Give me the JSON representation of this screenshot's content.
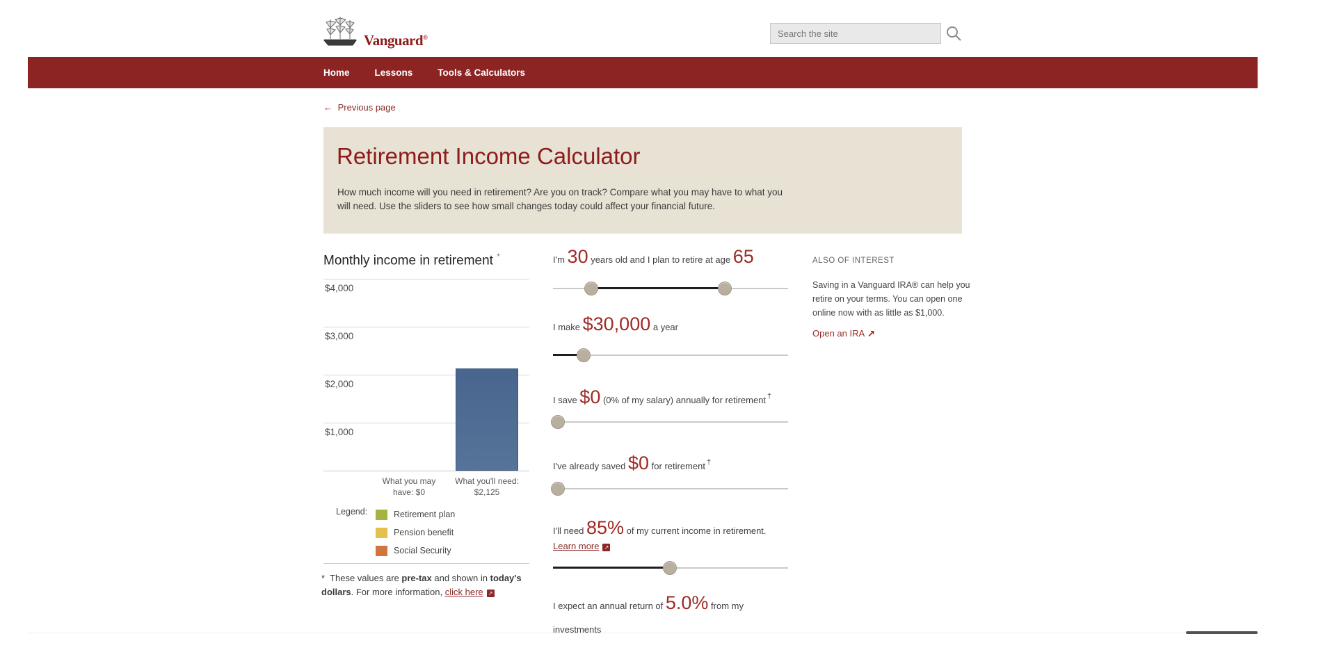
{
  "header": {
    "brand": "Vanguard",
    "brand_registered": "®",
    "search": {
      "placeholder": "Search the site"
    }
  },
  "nav": {
    "items": [
      {
        "label": "Home"
      },
      {
        "label": "Lessons"
      },
      {
        "label": "Tools & Calculators"
      }
    ]
  },
  "breadcrumb": {
    "back_arrow": "←",
    "label": "Previous page"
  },
  "banner": {
    "title": "Retirement Income Calculator",
    "description": "How much income will you need in retirement? Are you on track? Compare what you may have to what you will need. Use the sliders to see how small changes today could affect your financial future."
  },
  "chart_data": {
    "type": "bar",
    "title": "Monthly income in retirement",
    "title_note": "*",
    "categories": [
      "What you may have: $0",
      "What you'll need: $2,125"
    ],
    "values": [
      0,
      2125
    ],
    "ylim": [
      0,
      4000
    ],
    "ytick_interval": 1000,
    "ytick_labels": [
      "$4,000",
      "$3,000",
      "$2,000",
      "$1,000"
    ],
    "grid": true,
    "legend_title": "Legend:",
    "legend_position": "below",
    "legend": [
      {
        "label": "Retirement plan",
        "color": "#a6b33f"
      },
      {
        "label": "Pension benefit",
        "color": "#e2c14f"
      },
      {
        "label": "Social Security",
        "color": "#d0763c"
      }
    ],
    "bar_colors": {
      "top": "#48658e",
      "bottom": "#567499",
      "border": "#3a5680"
    }
  },
  "footnote": {
    "symbol": "*",
    "text_1": "These values are ",
    "bold_1": "pre-tax",
    "text_2": " and shown in ",
    "bold_2": "today's dollars",
    "text_3": ". For more information, ",
    "link_label": "click here",
    "external_icon": "↗"
  },
  "sliders": [
    {
      "prefix": "I'm ",
      "value": "30",
      "middle": " years old and I plan to retire at age ",
      "value2": "65",
      "handles": [
        16.3,
        73
      ],
      "fill": "between"
    },
    {
      "prefix": "I make ",
      "value": "$30,000",
      "suffix": " a year",
      "handles": [
        13
      ],
      "fill": "left"
    },
    {
      "prefix": "I save ",
      "value": "$0",
      "suffix": " (0% of my salary) annually for retirement",
      "note": "†",
      "handles": [
        2
      ],
      "fill": "left"
    },
    {
      "prefix": "I've already saved ",
      "value": "$0",
      "suffix": " for retirement",
      "note": "†",
      "handles": [
        2
      ],
      "fill": "left"
    },
    {
      "prefix": "I'll need ",
      "value": "85%",
      "suffix": " of my current income in retirement.",
      "link_label": "Learn more",
      "external_icon": "↗",
      "handles": [
        49.7
      ],
      "fill": "left"
    },
    {
      "prefix": "I expect an annual return of ",
      "value": "5.0%",
      "suffix": " from my investments",
      "handles": [],
      "fill": "none"
    }
  ],
  "also_of_interest": {
    "heading": "ALSO OF INTEREST",
    "body": "Saving in a Vanguard IRA® can help you retire on your terms. You can open one online now with as little as $1,000.",
    "link_label": "Open an IRA",
    "link_arrow": "↗"
  },
  "icons": {
    "search": "magnifier-icon",
    "back": "left-arrow-icon",
    "external_link": "arrow-up-right-box-icon",
    "logo": "sailing-ship-icon"
  },
  "colors": {
    "nav_red": "#8c2424",
    "brand_red": "#8e1b1b",
    "value_red": "#9e2b25",
    "link_red": "#8a2a28",
    "banner_bg": "#e7e2d4",
    "slider_handle": "#b9af9f"
  }
}
